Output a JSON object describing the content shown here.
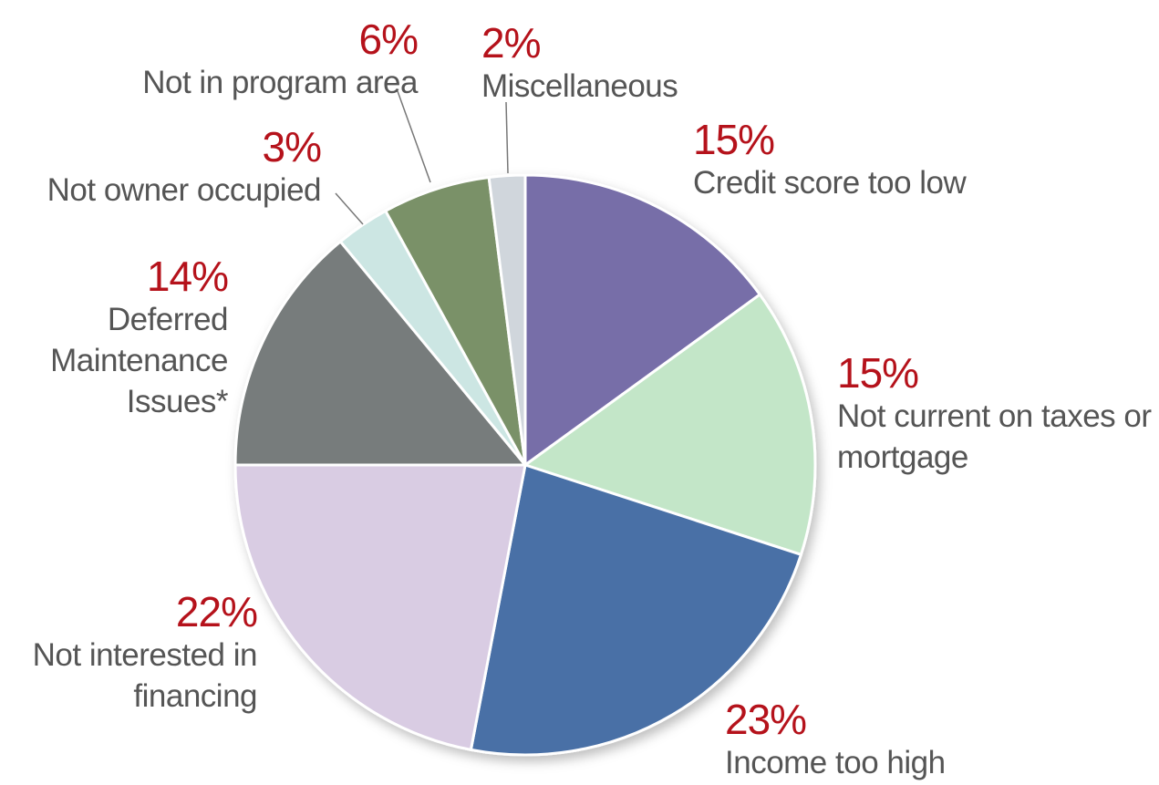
{
  "chart_data": {
    "type": "pie",
    "categories": [
      "Credit score too low",
      "Not current on taxes or mortgage",
      "Income too high",
      "Not interested in financing",
      "Deferred Maintenance Issues*",
      "Not owner occupied",
      "Not in program area",
      "Miscellaneous"
    ],
    "values": [
      15,
      15,
      23,
      22,
      14,
      3,
      6,
      2
    ],
    "value_labels": [
      "15%",
      "15%",
      "23%",
      "22%",
      "14%",
      "3%",
      "6%",
      "2%"
    ],
    "colors": [
      "#776ea8",
      "#c3e6c8",
      "#4a70a6",
      "#d9cce3",
      "#777c7b",
      "#cce6e3",
      "#7a9168",
      "#d0d6dc"
    ]
  }
}
